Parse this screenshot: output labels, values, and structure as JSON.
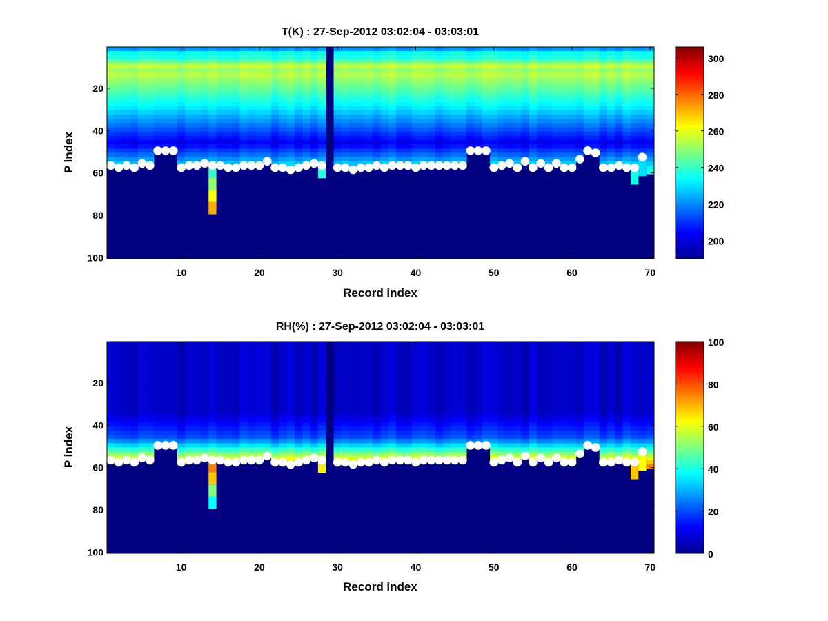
{
  "chart_data": [
    {
      "type": "heatmap",
      "title": "T(K) : 27-Sep-2012 03:02:04 - 03:03:01",
      "xlabel": "Record index",
      "ylabel": "P index",
      "xlim": [
        0.5,
        70.5
      ],
      "ylim": [
        0.5,
        100.5
      ],
      "y_reversed": true,
      "xticks": [
        10,
        20,
        30,
        40,
        50,
        60,
        70
      ],
      "yticks": [
        20,
        40,
        60,
        80,
        100
      ],
      "colorbar": {
        "range": [
          190,
          306
        ],
        "ticks": [
          200,
          220,
          240,
          260,
          280,
          300
        ],
        "colormap": "jet"
      },
      "missing_records": [
        29
      ],
      "surface_p_index": [
        56.5,
        57.5,
        56.5,
        57.5,
        55.5,
        56.5,
        49.5,
        49.5,
        49.5,
        57.5,
        56.5,
        56.5,
        55.5,
        56.5,
        56.5,
        57.5,
        57.5,
        56.5,
        56.5,
        56.5,
        54.5,
        57.5,
        57.5,
        58.5,
        57.5,
        56.5,
        55.5,
        56.5,
        null,
        57.5,
        57.5,
        58.5,
        57.5,
        57.5,
        56.5,
        57.5,
        56.5,
        56.5,
        56.5,
        57.5,
        56.5,
        56.5,
        56.5,
        56.5,
        56.5,
        56.5,
        49.5,
        49.5,
        49.5,
        57.5,
        56.5,
        55.5,
        57.5,
        54.5,
        57.5,
        55.5,
        57.5,
        55.5,
        57.5,
        57.5,
        53.5,
        49.5,
        50.5,
        57.5,
        57.5,
        56.5,
        57.5,
        57.5,
        52.5,
        null
      ],
      "extra_columns": [
        {
          "record": 14,
          "from_p": 57,
          "to_p": 79,
          "values_top_to_bottom": [
            240,
            250,
            262,
            272
          ]
        },
        {
          "record": 28,
          "from_p": 57,
          "to_p": 62,
          "values_top_to_bottom": [
            238
          ]
        },
        {
          "record": 68,
          "from_p": 58,
          "to_p": 65,
          "values_top_to_bottom": [
            236
          ]
        },
        {
          "record": 69,
          "from_p": 53,
          "to_p": 61,
          "values_top_to_bottom": [
            230
          ]
        }
      ]
    },
    {
      "type": "heatmap",
      "title": "RH(%) : 27-Sep-2012 03:02:04 - 03:03:01",
      "xlabel": "Record index",
      "ylabel": "P index",
      "xlim": [
        0.5,
        70.5
      ],
      "ylim": [
        0.5,
        100.5
      ],
      "y_reversed": true,
      "xticks": [
        10,
        20,
        30,
        40,
        50,
        60,
        70
      ],
      "yticks": [
        20,
        40,
        60,
        80,
        100
      ],
      "colorbar": {
        "range": [
          0,
          100
        ],
        "ticks": [
          0,
          20,
          40,
          60,
          80,
          100
        ],
        "colormap": "jet"
      },
      "missing_records": [
        29
      ],
      "surface_p_index": [
        56.5,
        57.5,
        56.5,
        57.5,
        55.5,
        56.5,
        49.5,
        49.5,
        49.5,
        57.5,
        56.5,
        56.5,
        55.5,
        56.5,
        56.5,
        57.5,
        57.5,
        56.5,
        56.5,
        56.5,
        54.5,
        57.5,
        57.5,
        58.5,
        57.5,
        56.5,
        55.5,
        56.5,
        null,
        57.5,
        57.5,
        58.5,
        57.5,
        57.5,
        56.5,
        57.5,
        56.5,
        56.5,
        56.5,
        57.5,
        56.5,
        56.5,
        56.5,
        56.5,
        56.5,
        56.5,
        49.5,
        49.5,
        49.5,
        57.5,
        56.5,
        55.5,
        57.5,
        54.5,
        57.5,
        55.5,
        57.5,
        55.5,
        57.5,
        57.5,
        53.5,
        49.5,
        50.5,
        57.5,
        57.5,
        56.5,
        57.5,
        57.5,
        52.5,
        null
      ],
      "extra_columns": [
        {
          "record": 14,
          "from_p": 57,
          "to_p": 79,
          "values_top_to_bottom": [
            75,
            68,
            50,
            38
          ]
        },
        {
          "record": 28,
          "from_p": 57,
          "to_p": 62,
          "values_top_to_bottom": [
            64
          ]
        },
        {
          "record": 68,
          "from_p": 58,
          "to_p": 65,
          "values_top_to_bottom": [
            68
          ]
        },
        {
          "record": 69,
          "from_p": 53,
          "to_p": 61,
          "values_top_to_bottom": [
            62
          ]
        }
      ]
    }
  ]
}
